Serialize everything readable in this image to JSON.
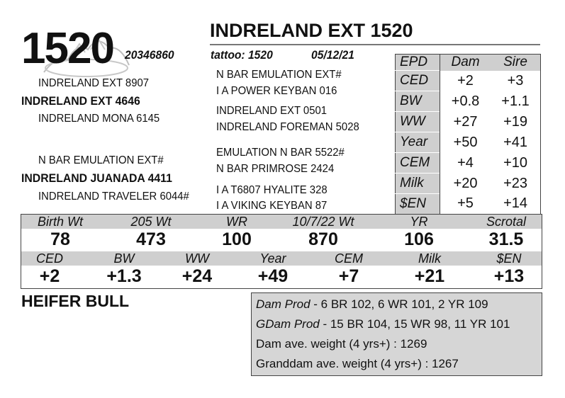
{
  "header": {
    "lot_number": "1520",
    "animal_name": "INDRELAND EXT 1520",
    "registration": "20346860",
    "tattoo": "tattoo: 1520",
    "birth_date": "05/12/21"
  },
  "pedigree": {
    "sire_sire": "INDRELAND EXT 8907",
    "sire": "INDRELAND EXT 4646",
    "sire_dam": "INDRELAND MONA 6145",
    "dam_sire": "N BAR EMULATION EXT#",
    "dam": "INDRELAND JUANADA 4411",
    "dam_dam": "INDRELAND TRAVELER 6044#",
    "ss_sire": "N BAR EMULATION EXT#",
    "ss_dam": "I A POWER KEYBAN 016",
    "sd_sire": "INDRELAND EXT 0501",
    "sd_dam": "INDRELAND FOREMAN 5028",
    "ds_sire": "EMULATION N BAR 5522#",
    "ds_dam": "N BAR PRIMROSE 2424",
    "dd_sire": "I A T6807 HYALITE 328",
    "dd_dam": "I A VIKING KEYBAN 87"
  },
  "epd_table": {
    "headers": [
      "EPD",
      "Dam",
      "Sire"
    ],
    "rows": [
      {
        "trait": "CED",
        "dam": "+2",
        "sire": "+3"
      },
      {
        "trait": "BW",
        "dam": "+0.8",
        "sire": "+1.1"
      },
      {
        "trait": "WW",
        "dam": "+27",
        "sire": "+19"
      },
      {
        "trait": "Year",
        "dam": "+50",
        "sire": "+41"
      },
      {
        "trait": "CEM",
        "dam": "+4",
        "sire": "+10"
      },
      {
        "trait": "Milk",
        "dam": "+20",
        "sire": "+23"
      },
      {
        "trait": "$EN",
        "dam": "+5",
        "sire": "+14"
      }
    ]
  },
  "performance": {
    "headers": [
      "Birth Wt",
      "205 Wt",
      "WR",
      "10/7/22 Wt",
      "YR",
      "Scrotal"
    ],
    "values": [
      "78",
      "473",
      "100",
      "870",
      "106",
      "31.5"
    ]
  },
  "calf_epds": {
    "headers": [
      "CED",
      "BW",
      "WW",
      "Year",
      "CEM",
      "Milk",
      "$EN"
    ],
    "values": [
      "+2",
      "+1.3",
      "+24",
      "+49",
      "+7",
      "+21",
      "+13"
    ]
  },
  "footer": {
    "note": "HEIFER BULL",
    "dam_prod_label": "Dam Prod",
    "dam_prod": " - 6 BR 102, 6 WR 101, 2 YR 109",
    "gdam_prod_label": "GDam Prod",
    "gdam_prod": " - 15 BR 104, 15 WR 98, 11 YR 101",
    "dam_weight": "Dam ave. weight (4 yrs+) : 1269",
    "granddam_weight": "Granddam ave. weight (4 yrs+) : 1267"
  }
}
